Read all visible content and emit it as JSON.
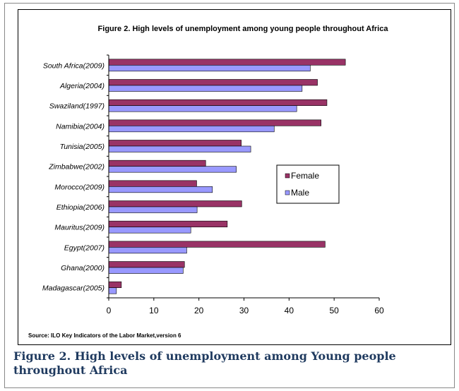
{
  "caption": "Figure 2. High levels of unemployment among Young people throughout Africa",
  "chart_data": {
    "type": "bar",
    "orientation": "horizontal",
    "title": "Figure 2. High levels of unemployment among young people throughout Africa",
    "source": "Source: ILO Key Indicators of the Labor Market,version 6",
    "categories": [
      "South Africa(2009)",
      "Algeria(2004)",
      "Swaziland(1997)",
      "Namibia(2004)",
      "Tunisia(2005)",
      "Zimbabwe(2002)",
      "Morocco(2009)",
      "Ethiopia(2006)",
      "Mauritus(2009)",
      "Egypt(2007)",
      "Ghana(2000)",
      "Madagascar(2005)"
    ],
    "series": [
      {
        "name": "Female",
        "color": "#993366",
        "values": [
          52.5,
          46.3,
          48.4,
          47.1,
          29.4,
          21.5,
          19.5,
          29.5,
          26.3,
          48.0,
          16.8,
          2.8
        ]
      },
      {
        "name": "Male",
        "color": "#9999ff",
        "values": [
          44.7,
          42.9,
          41.7,
          36.7,
          31.5,
          28.3,
          23.0,
          19.6,
          18.2,
          17.3,
          16.5,
          1.7
        ]
      }
    ],
    "xlim": [
      0,
      60
    ],
    "xticks": [
      "0",
      "10",
      "20",
      "30",
      "40",
      "50",
      "60"
    ],
    "legend_position": "right",
    "grid": false
  }
}
